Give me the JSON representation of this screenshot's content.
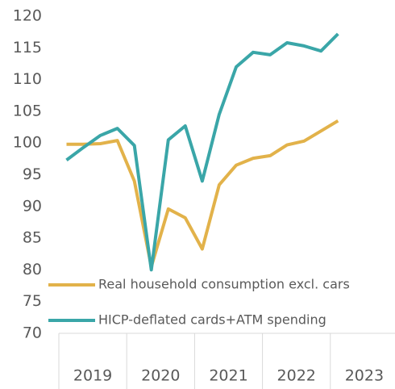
{
  "chart_data": {
    "type": "line",
    "xgroups": [
      "2019",
      "2020",
      "2021",
      "2022",
      "2023"
    ],
    "per_group": 4,
    "series": [
      {
        "name": "Real household consumption excl. cars",
        "color": "#e2b24a",
        "values": [
          99.8,
          99.8,
          99.9,
          100.4,
          94,
          80.5,
          89.6,
          88.2,
          83.3,
          93.4,
          96.5,
          97.6,
          98,
          99.7,
          100.3,
          101.9,
          103.5
        ]
      },
      {
        "name": "HICP-deflated cards+ATM spending",
        "color": "#3aa6a8",
        "values": [
          97.3,
          99.3,
          101.2,
          102.3,
          99.6,
          80,
          100.5,
          102.7,
          94,
          104.5,
          112,
          114.3,
          113.9,
          115.8,
          115.3,
          114.5,
          117.2
        ]
      }
    ],
    "ylim": [
      70,
      120
    ],
    "yticks": [
      70,
      75,
      80,
      85,
      90,
      95,
      100,
      105,
      110,
      115,
      120
    ],
    "grid": false,
    "legend": "lower left"
  }
}
